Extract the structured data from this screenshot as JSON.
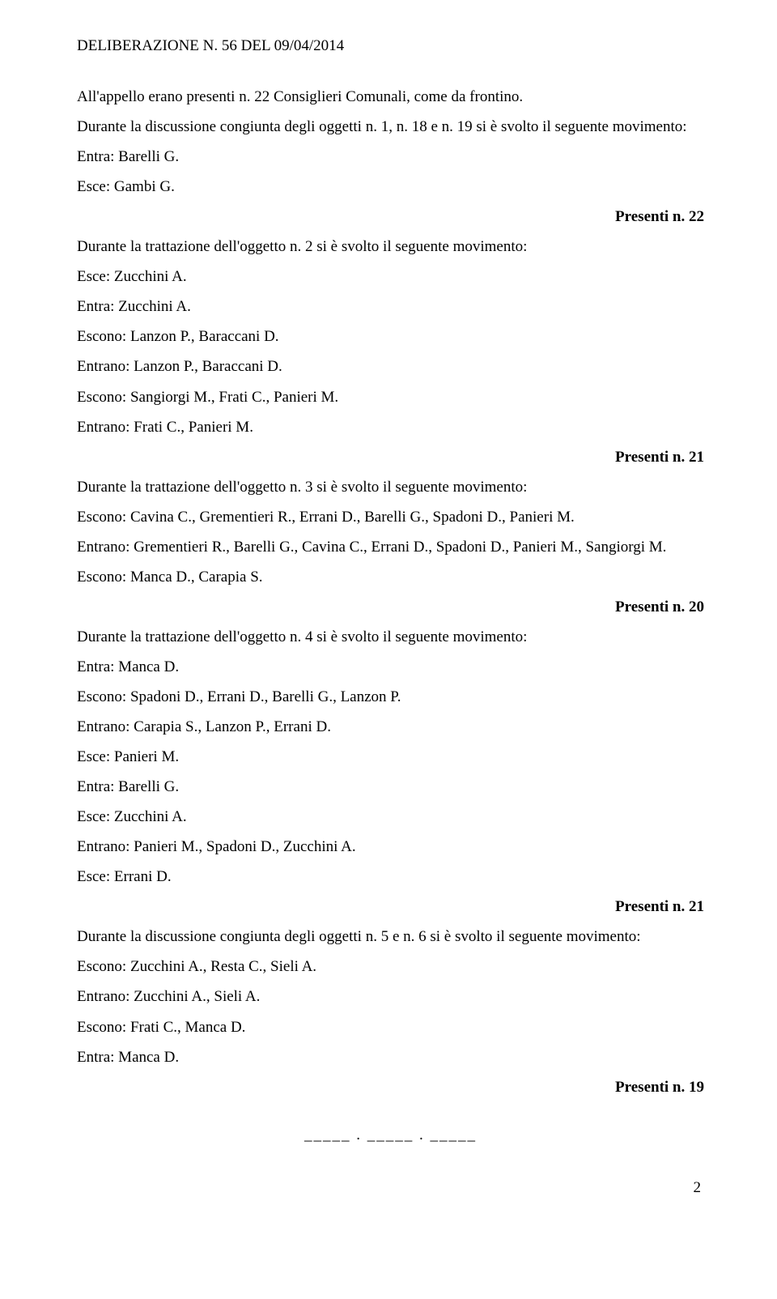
{
  "header": "DELIBERAZIONE N. 56  DEL 09/04/2014",
  "lines": [
    {
      "text": "All'appello erano presenti n. 22 Consiglieri Comunali, come da frontino.",
      "cls": "para"
    },
    {
      "text": "Durante la discussione congiunta degli oggetti n. 1, n. 18 e n. 19 si è svolto il seguente movimento:",
      "cls": "para"
    },
    {
      "text": "Entra: Barelli G.",
      "cls": "para"
    },
    {
      "text": "Esce: Gambi G.",
      "cls": "para"
    },
    {
      "text": "Presenti n. 22",
      "cls": "right-align"
    },
    {
      "text": "Durante la trattazione dell'oggetto n. 2 si è svolto il seguente movimento:",
      "cls": "para"
    },
    {
      "text": "Esce: Zucchini A.",
      "cls": "para"
    },
    {
      "text": "Entra: Zucchini A.",
      "cls": "para"
    },
    {
      "text": "Escono: Lanzon P., Baraccani D.",
      "cls": "para"
    },
    {
      "text": "Entrano: Lanzon P., Baraccani D.",
      "cls": "para"
    },
    {
      "text": "Escono: Sangiorgi M., Frati C., Panieri M.",
      "cls": "para"
    },
    {
      "text": "Entrano: Frati C., Panieri M.",
      "cls": "para"
    },
    {
      "text": "Presenti n. 21",
      "cls": "right-align"
    },
    {
      "text": "Durante la trattazione dell'oggetto n. 3 si è svolto il seguente movimento:",
      "cls": "para"
    },
    {
      "text": "Escono: Cavina C., Grementieri R., Errani D., Barelli G., Spadoni D., Panieri M.",
      "cls": "para"
    },
    {
      "text": "Entrano: Grementieri R., Barelli G., Cavina C., Errani D., Spadoni D., Panieri M., Sangiorgi M.",
      "cls": "para"
    },
    {
      "text": "Escono: Manca D., Carapia S.",
      "cls": "para"
    },
    {
      "text": "Presenti n. 20",
      "cls": "right-align"
    },
    {
      "text": "Durante la trattazione dell'oggetto n. 4 si è svolto il seguente movimento:",
      "cls": "para"
    },
    {
      "text": "Entra: Manca D.",
      "cls": "para"
    },
    {
      "text": "Escono: Spadoni D., Errani D., Barelli G., Lanzon P.",
      "cls": "para"
    },
    {
      "text": "Entrano: Carapia S., Lanzon P., Errani D.",
      "cls": "para"
    },
    {
      "text": "Esce: Panieri M.",
      "cls": "para"
    },
    {
      "text": "Entra: Barelli G.",
      "cls": "para"
    },
    {
      "text": "Esce: Zucchini A.",
      "cls": "para"
    },
    {
      "text": "Entrano: Panieri M., Spadoni D., Zucchini A.",
      "cls": "para"
    },
    {
      "text": "Esce: Errani D.",
      "cls": "para"
    },
    {
      "text": "Presenti n. 21",
      "cls": "right-align"
    },
    {
      "text": "Durante la discussione congiunta degli oggetti n. 5 e n. 6 si è svolto il seguente movimento:",
      "cls": "para"
    },
    {
      "text": "Escono: Zucchini A., Resta C., Sieli A.",
      "cls": "para"
    },
    {
      "text": "Entrano: Zucchini A., Sieli A.",
      "cls": "para"
    },
    {
      "text": "Escono: Frati C., Manca D.",
      "cls": "para"
    },
    {
      "text": "Entra: Manca D.",
      "cls": "para"
    },
    {
      "text": "Presenti n. 19",
      "cls": "right-align"
    }
  ],
  "divider": "_____ . _____ . _____",
  "page_number": "2"
}
